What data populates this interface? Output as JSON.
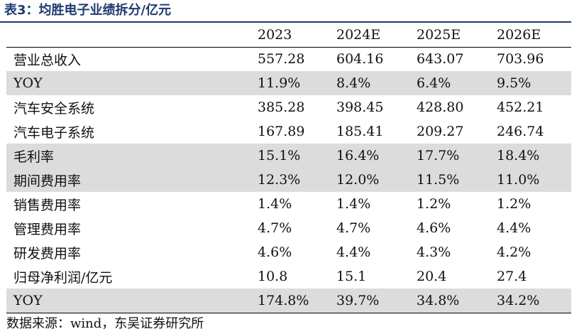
{
  "title": "表3：均胜电子业绩拆分/亿元",
  "columns": [
    "",
    "2023",
    "2024E",
    "2025E",
    "2026E"
  ],
  "rows": [
    {
      "label": "营业总收入",
      "values": [
        "557.28",
        "604.16",
        "643.07",
        "703.96"
      ],
      "shaded": false
    },
    {
      "label": "YOY",
      "values": [
        "11.9%",
        "8.4%",
        "6.4%",
        "9.5%"
      ],
      "shaded": true
    },
    {
      "label": "汽车安全系统",
      "values": [
        "385.28",
        "398.45",
        "428.80",
        "452.21"
      ],
      "shaded": false
    },
    {
      "label": "汽车电子系统",
      "values": [
        "167.89",
        "185.41",
        "209.27",
        "246.74"
      ],
      "shaded": false
    },
    {
      "label": "毛利率",
      "values": [
        "15.1%",
        "16.4%",
        "17.7%",
        "18.4%"
      ],
      "shaded": true
    },
    {
      "label": "期间费用率",
      "values": [
        "12.3%",
        "12.0%",
        "11.5%",
        "11.0%"
      ],
      "shaded": true
    },
    {
      "label": "销售费用率",
      "values": [
        "1.4%",
        "1.4%",
        "1.2%",
        "1.2%"
      ],
      "shaded": false
    },
    {
      "label": "管理费用率",
      "values": [
        "4.7%",
        "4.7%",
        "4.6%",
        "4.4%"
      ],
      "shaded": false
    },
    {
      "label": "研发费用率",
      "values": [
        "4.6%",
        "4.4%",
        "4.3%",
        "4.2%"
      ],
      "shaded": false
    },
    {
      "label": "归母净利润/亿元",
      "values": [
        "10.8",
        "15.1",
        "20.4",
        "27.4"
      ],
      "shaded": false
    },
    {
      "label": "YOY",
      "values": [
        "174.8%",
        "39.7%",
        "34.8%",
        "34.2%"
      ],
      "shaded": true
    }
  ],
  "source": "数据来源：wind，东吴证券研究所",
  "colors": {
    "title": "#1f3a6e",
    "shade": "#dcdcdc"
  }
}
